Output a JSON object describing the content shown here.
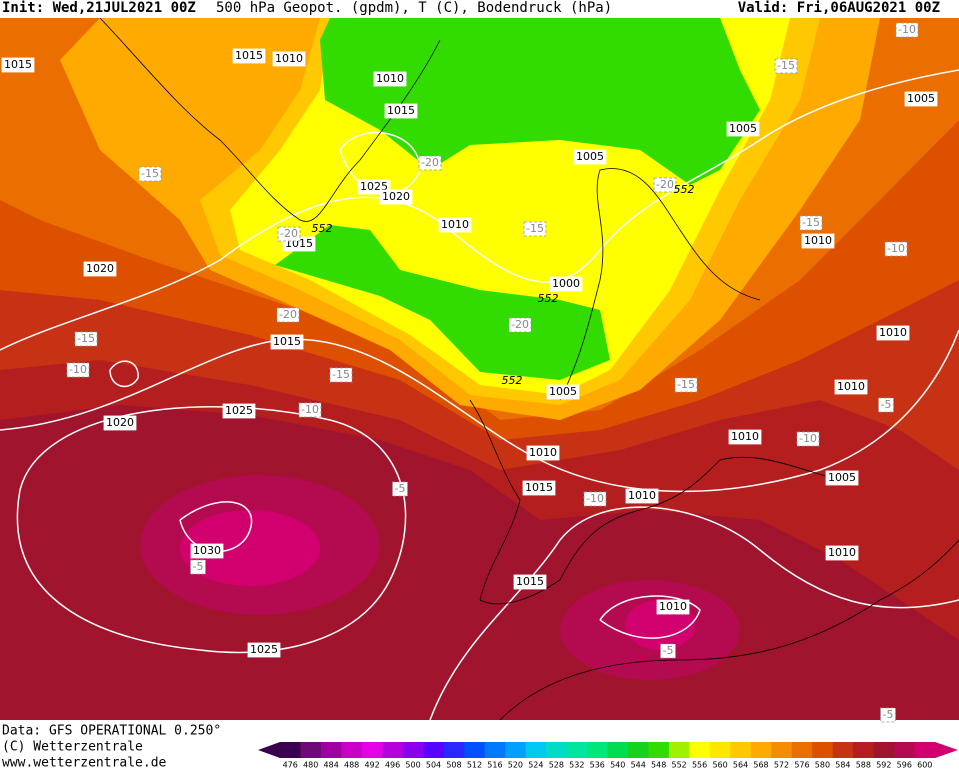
{
  "header": {
    "init": "Init: Wed,21JUL2021 00Z",
    "title": "500 hPa Geopot. (gpdm), T (C), Bodendruck (hPa)",
    "valid": "Valid: Fri,06AUG2021 00Z"
  },
  "footer": {
    "data": "Data: GFS OPERATIONAL 0.250°",
    "copyright": "(C) Wetterzentrale",
    "url": "www.wetterzentrale.de"
  },
  "map": {
    "pressure_labels": [
      "1015",
      "1015",
      "1010",
      "1010",
      "1015",
      "1005",
      "1005",
      "1005",
      "1025",
      "1020",
      "1010",
      "1015",
      "1020",
      "1000",
      "1010",
      "1015",
      "1010",
      "1010",
      "1005",
      "1010",
      "1025",
      "1020",
      "1010",
      "1005",
      "1015",
      "1010",
      "1030",
      "1010",
      "1015",
      "1010",
      "1025"
    ],
    "temperature_labels": [
      "-10",
      "-15",
      "-15",
      "-20",
      "-15",
      "-20",
      "-15",
      "-10",
      "-20",
      "-15",
      "-10",
      "-15",
      "-20",
      "-15",
      "-10",
      "-5",
      "-10",
      "-5",
      "-10",
      "-5",
      "-5",
      "-5",
      "-20"
    ],
    "geopotential_labels": [
      "552",
      "552",
      "552",
      "552"
    ]
  },
  "legend": {
    "values": [
      476,
      480,
      484,
      488,
      492,
      496,
      500,
      504,
      508,
      512,
      516,
      520,
      524,
      528,
      532,
      536,
      540,
      544,
      548,
      552,
      556,
      560,
      564,
      568,
      572,
      576,
      580,
      584,
      588,
      592,
      596,
      600
    ],
    "colors": [
      "#3c0050",
      "#6e0a78",
      "#a000a0",
      "#c800c8",
      "#e600e6",
      "#b400dc",
      "#8c00f0",
      "#5a00ff",
      "#2828ff",
      "#0050ff",
      "#0078ff",
      "#00a0ff",
      "#00c8f0",
      "#00dcc8",
      "#00e6a0",
      "#00e678",
      "#00dc50",
      "#14d21e",
      "#32dc00",
      "#a0f000",
      "#ffff00",
      "#ffe600",
      "#ffc800",
      "#ffaa00",
      "#f58c00",
      "#eb6e00",
      "#dc5000",
      "#c83214",
      "#b41e1e",
      "#a0142d",
      "#b40a50",
      "#d2006e"
    ]
  }
}
